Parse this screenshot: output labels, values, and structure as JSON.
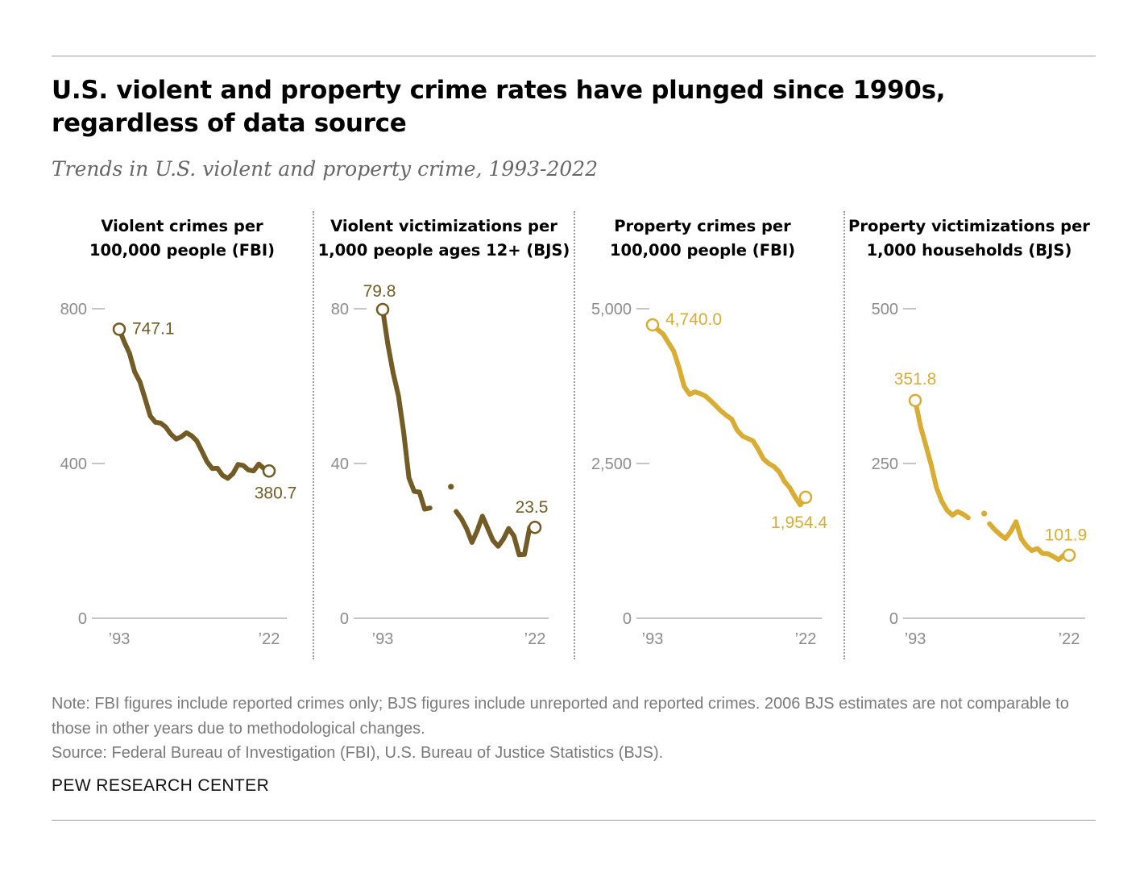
{
  "title": "U.S. violent and property crime rates have plunged since 1990s, regardless of data source",
  "title_lines": [
    "U.S. violent and property crime rates have plunged since 1990s,",
    "regardless of data source"
  ],
  "subtitle": "Trends in U.S. violent and property crime, 1993-2022",
  "notes": {
    "note": "Note: FBI figures include reported crimes only; BJS figures include unreported and reported crimes. 2006 BJS estimates are not comparable to those in other years due to methodological changes.",
    "source": "Source: Federal Bureau of Investigation (FBI), U.S. Bureau of Justice Statistics (BJS)."
  },
  "brand": "PEW RESEARCH CENTER",
  "colors": {
    "dark": "#725b24",
    "gold": "#d9ad34",
    "axis": "#b0b0b0",
    "tick_text": "#8c8c8c"
  },
  "chart_data": [
    {
      "type": "line",
      "title": "Violent crimes per 100,000 people (FBI)",
      "title_lines": [
        "Violent crimes per",
        "100,000 people (FBI)"
      ],
      "color": "dark",
      "ylim": [
        0,
        800
      ],
      "yticks": [
        0,
        400,
        800
      ],
      "ytick_labels": [
        "0",
        "400",
        "800"
      ],
      "xlim": [
        1993,
        2022
      ],
      "xtick_labels": [
        "’93",
        "’22"
      ],
      "start_label": "747.1",
      "end_label": "380.7",
      "x": [
        1993,
        1994,
        1995,
        1996,
        1997,
        1998,
        1999,
        2000,
        2001,
        2002,
        2003,
        2004,
        2005,
        2006,
        2007,
        2008,
        2009,
        2010,
        2011,
        2012,
        2013,
        2014,
        2015,
        2016,
        2017,
        2018,
        2019,
        2020,
        2021,
        2022
      ],
      "segments": [
        [
          747.1,
          713.6,
          684.5,
          636.6,
          611.0,
          567.6,
          523.0,
          506.5,
          504.5,
          494.4,
          475.8,
          463.2,
          469.0,
          479.3,
          471.8,
          458.6,
          431.9,
          404.5,
          387.1,
          387.8,
          369.1,
          361.6,
          373.7,
          397.5,
          394.9,
          383.4,
          380.8,
          398.5,
          387.0,
          380.7
        ]
      ]
    },
    {
      "type": "line",
      "title": "Violent victimizations per 1,000 people ages 12+ (BJS)",
      "title_lines": [
        "Violent victimizations per",
        "1,000 people ages 12+ (BJS)"
      ],
      "color": "dark",
      "ylim": [
        0,
        80
      ],
      "yticks": [
        0,
        40,
        80
      ],
      "ytick_labels": [
        "0",
        "40",
        "80"
      ],
      "xlim": [
        1993,
        2022
      ],
      "xtick_labels": [
        "’93",
        "’22"
      ],
      "start_label": "79.8",
      "end_label": "23.5",
      "x": [
        1993,
        1994,
        1995,
        1996,
        1997,
        1998,
        1999,
        2000,
        2001,
        2002,
        2003,
        2004,
        2005,
        2006,
        2007,
        2008,
        2009,
        2010,
        2011,
        2012,
        2013,
        2014,
        2015,
        2016,
        2017,
        2018,
        2019,
        2020,
        2021,
        2022
      ],
      "segments": [
        [
          79.8,
          70.7,
          63.4,
          57.5,
          48.0,
          36.3,
          32.8,
          32.6,
          28.2,
          28.5
        ],
        [
          34.0
        ],
        [
          27.6,
          25.7,
          23.1,
          19.6,
          22.6,
          26.4,
          23.3,
          20.1,
          18.6,
          20.5,
          23.2,
          21.3,
          16.4,
          16.5,
          23.5
        ]
      ],
      "segment_start_index": [
        0,
        13,
        14
      ]
    },
    {
      "type": "line",
      "title": "Property crimes per 100,000 people (FBI)",
      "title_lines": [
        "Property crimes per",
        "100,000 people (FBI)"
      ],
      "color": "gold",
      "ylim": [
        0,
        5000
      ],
      "yticks": [
        0,
        2500,
        5000
      ],
      "ytick_labels": [
        "0",
        "2,500",
        "5,000"
      ],
      "xlim": [
        1993,
        2022
      ],
      "xtick_labels": [
        "’93",
        "’22"
      ],
      "start_label": "4,740.0",
      "end_label": "1,954.4",
      "x": [
        1993,
        1994,
        1995,
        1996,
        1997,
        1998,
        1999,
        2000,
        2001,
        2002,
        2003,
        2004,
        2005,
        2006,
        2007,
        2008,
        2009,
        2010,
        2011,
        2012,
        2013,
        2014,
        2015,
        2016,
        2017,
        2018,
        2019,
        2020,
        2021,
        2022
      ],
      "segments": [
        [
          4740.0,
          4660.2,
          4590.5,
          4451.0,
          4316.3,
          4052.5,
          3743.6,
          3618.3,
          3658.1,
          3630.6,
          3591.2,
          3514.1,
          3431.5,
          3346.6,
          3276.4,
          3214.6,
          3041.3,
          2945.9,
          2905.4,
          2868.0,
          2733.6,
          2574.1,
          2500.5,
          2451.6,
          2362.9,
          2209.8,
          2109.9,
          1958.2,
          1832.3,
          1954.4
        ]
      ]
    },
    {
      "type": "line",
      "title": "Property victimizations per 1,000 households (BJS)",
      "title_lines": [
        "Property victimizations per",
        "1,000 households (BJS)"
      ],
      "color": "gold",
      "ylim": [
        0,
        500
      ],
      "yticks": [
        0,
        250,
        500
      ],
      "ytick_labels": [
        "0",
        "250",
        "500"
      ],
      "xlim": [
        1993,
        2022
      ],
      "xtick_labels": [
        "’93",
        "’22"
      ],
      "start_label": "351.8",
      "end_label": "101.9",
      "x": [
        1993,
        1994,
        1995,
        1996,
        1997,
        1998,
        1999,
        2000,
        2001,
        2002,
        2003,
        2004,
        2005,
        2006,
        2007,
        2008,
        2009,
        2010,
        2011,
        2012,
        2013,
        2014,
        2015,
        2016,
        2017,
        2018,
        2019,
        2020,
        2021,
        2022
      ],
      "segments": [
        [
          351.8,
          310.2,
          279.5,
          248.0,
          211.5,
          189.2,
          174.5,
          166.5,
          172.4,
          168.2,
          162.2
        ],
        [
          169.2
        ],
        [
          152.7,
          143.1,
          135.2,
          128.7,
          140.1,
          155.8,
          128.7,
          116.7,
          109.2,
          112.8,
          104.7,
          104.2,
          100.0,
          94.5,
          101.9
        ]
      ],
      "segment_start_index": [
        0,
        13,
        14
      ]
    }
  ]
}
